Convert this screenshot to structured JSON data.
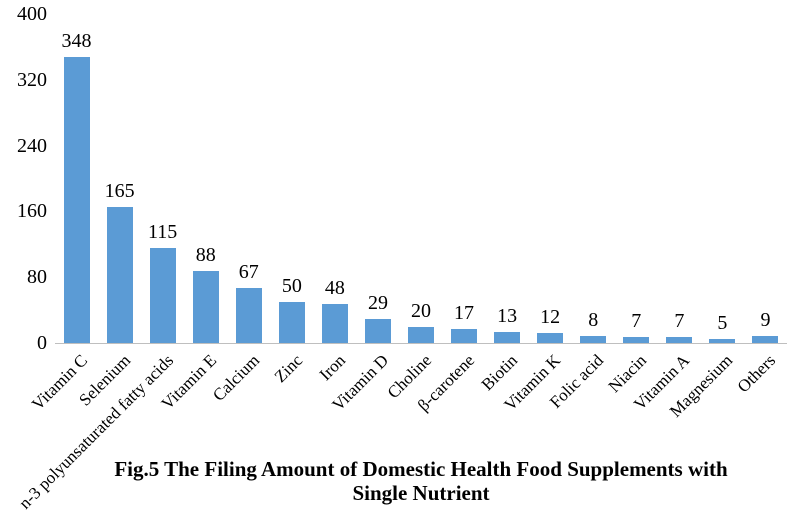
{
  "chart_data": {
    "type": "bar",
    "categories": [
      "Vitamin C",
      "Selenium",
      "n-3 polyunsaturated fatty acids",
      "Vitamin E",
      "Calcium",
      "Zinc",
      "Iron",
      "Vitamin D",
      "Choline",
      "β-carotene",
      "Biotin",
      "Vitamin K",
      "Folic acid",
      "Niacin",
      "Vitamin A",
      "Magnesium",
      "Others"
    ],
    "values": [
      348,
      165,
      115,
      88,
      67,
      50,
      48,
      29,
      20,
      17,
      13,
      12,
      8,
      7,
      7,
      5,
      9
    ],
    "title": "Fig.5 The Filing Amount of Domestic Health Food Supplements with Single Nutrient",
    "title_line1": "Fig.5 The Filing Amount of Domestic Health Food Supplements with",
    "title_line2": "Single Nutrient",
    "xlabel": "",
    "ylabel": "",
    "y_ticks": [
      0,
      80,
      160,
      240,
      320,
      400
    ],
    "ylim": [
      0,
      400
    ],
    "grid": "off",
    "legend": "none",
    "value_labels": "above-bars",
    "category_label_rotation_deg": -45,
    "bar_color": "#5b9bd5",
    "axis_line_color": "#bfbfbf",
    "text_color": "#000000"
  }
}
